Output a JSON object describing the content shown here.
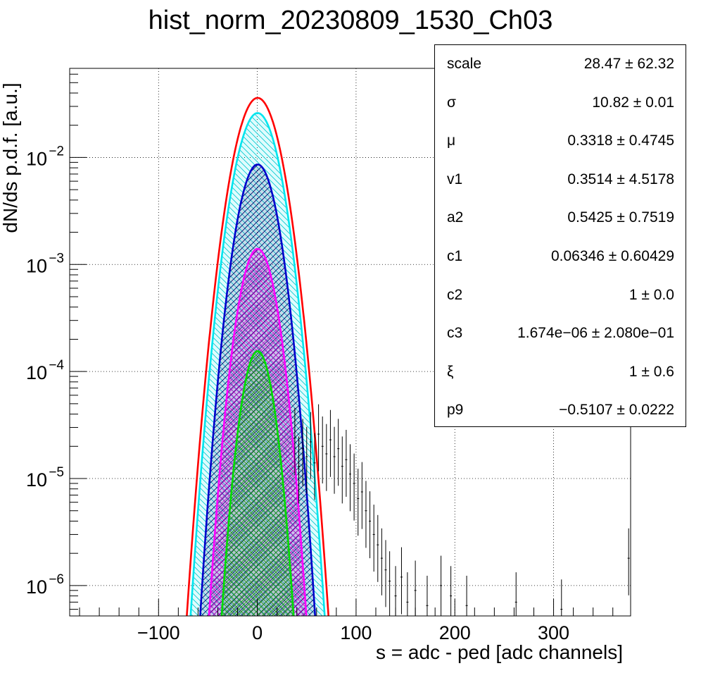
{
  "chart_data": {
    "type": "histogram-fit",
    "title": "hist_norm_20230809_1530_Ch03",
    "xlabel": "s = adc - ped [adc channels]",
    "ylabel": "dN/ds p.d.f. [a.u.]",
    "xlim": [
      -190,
      378
    ],
    "ylim": [
      5.2e-07,
      0.068
    ],
    "yscale": "log",
    "grid": true,
    "x_ticks": [
      -100,
      0,
      100,
      200,
      300
    ],
    "x_tick_labels": [
      "−100",
      "0",
      "100",
      "200",
      "300"
    ],
    "y_ticks": [
      1e-06,
      1e-05,
      0.0001,
      0.001,
      0.01
    ],
    "y_tick_labels": [
      {
        "base": "10",
        "exp": "−6"
      },
      {
        "base": "10",
        "exp": "−5"
      },
      {
        "base": "10",
        "exp": "−4"
      },
      {
        "base": "10",
        "exp": "−3"
      },
      {
        "base": "10",
        "exp": "−2"
      }
    ],
    "components": [
      {
        "color": "#ff0000",
        "peak": 0.036,
        "mu": 0.33,
        "sigma": 15.2,
        "fill": "none",
        "hatch": false
      },
      {
        "color": "#00e5ee",
        "peak": 0.026,
        "mu": 0.33,
        "sigma": 14.6,
        "fill": "#00e5ee",
        "hatch": "diag"
      },
      {
        "color": "#0000cc",
        "peak": 0.0086,
        "mu": 0.33,
        "sigma": 13.2,
        "fill": "#000066",
        "hatch": "diag"
      },
      {
        "color": "#ff00ff",
        "peak": 0.0014,
        "mu": 0.33,
        "sigma": 12.4,
        "fill": "#ff00ff",
        "hatch": "cross"
      },
      {
        "color": "#00dd00",
        "peak": 0.000155,
        "mu": 0.33,
        "sigma": 10.8,
        "fill": "#00dd00",
        "hatch": "cross"
      }
    ],
    "tail_points": [
      [
        38,
        2.4e-05
      ],
      [
        42,
        1.3e-05
      ],
      [
        46,
        1.9e-05
      ],
      [
        50,
        1.6e-05
      ],
      [
        54,
        2.2e-05
      ],
      [
        58,
        1.4e-05
      ],
      [
        62,
        2.6e-05
      ],
      [
        66,
        2e-05
      ],
      [
        70,
        1.7e-05
      ],
      [
        74,
        2.3e-05
      ],
      [
        78,
        1.6e-05
      ],
      [
        82,
        1.9e-05
      ],
      [
        86,
        1.3e-05
      ],
      [
        90,
        1.5e-05
      ],
      [
        94,
        1.1e-05
      ],
      [
        98,
        9e-06
      ],
      [
        102,
        6.5e-06
      ],
      [
        106,
        7.5e-06
      ],
      [
        110,
        5e-06
      ],
      [
        114,
        4e-06
      ],
      [
        118,
        3e-06
      ],
      [
        122,
        2.4e-06
      ],
      [
        126,
        1.8e-06
      ],
      [
        130,
        1.4e-06
      ],
      [
        134,
        1.1e-06
      ],
      [
        140,
        8e-07
      ],
      [
        146,
        1.2e-06
      ],
      [
        152,
        7e-07
      ],
      [
        160,
        9e-07
      ],
      [
        172,
        6.5e-07
      ],
      [
        186,
        1e-06
      ],
      [
        196,
        8e-07
      ],
      [
        212,
        6.5e-07
      ],
      [
        262,
        7e-07
      ],
      [
        308,
        6e-07
      ],
      [
        376,
        1.8e-06
      ]
    ]
  },
  "statbox": {
    "rows": [
      {
        "name": "scale",
        "value": "28.47 ± 62.32"
      },
      {
        "name": "σ",
        "value": "10.82 ± 0.01"
      },
      {
        "name": "μ",
        "value": "0.3318 ± 0.4745"
      },
      {
        "name": "v1",
        "value": "0.3514 ± 4.5178"
      },
      {
        "name": "a2",
        "value": "0.5425 ± 0.7519"
      },
      {
        "name": "c1",
        "value": "0.06346 ± 0.60429"
      },
      {
        "name": "c2",
        "value": "1 ± 0.0"
      },
      {
        "name": "c3",
        "value": "1.674e−06 ± 2.080e−01"
      },
      {
        "name": "ξ",
        "value": "1 ± 0.6"
      },
      {
        "name": "p9",
        "value": "−0.5107 ± 0.0222"
      }
    ]
  }
}
